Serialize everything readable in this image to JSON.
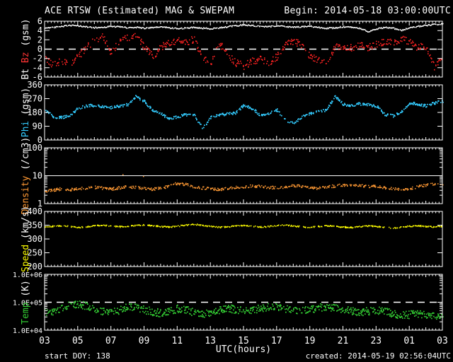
{
  "header": {
    "title": "ACE RTSW (Estimated) MAG & SWEPAM",
    "begin": "Begin: 2014-05-18 03:00:00UTC"
  },
  "footer": {
    "start_doy": "start DOY: 138",
    "created": "created: 2014-05-19 02:56:04UTC"
  },
  "colors": {
    "background": "#000000",
    "frame": "#ffffff",
    "bt": "#ffffff",
    "bz": "#ff2222",
    "phi": "#33ccff",
    "density": "#ff9933",
    "speed": "#ffff00",
    "temp": "#33cc33"
  },
  "chart_data": {
    "type": "scatter",
    "title": "ACE RTSW (Estimated) MAG & SWEPAM",
    "xlabel": "UTC(hours)",
    "x_range": [
      3,
      27
    ],
    "x_tick_labels": [
      "03",
      "05",
      "07",
      "09",
      "11",
      "13",
      "15",
      "17",
      "19",
      "21",
      "23",
      "01",
      "03"
    ],
    "x_hours": [
      3,
      3.5,
      4,
      4.5,
      5,
      5.5,
      6,
      6.5,
      7,
      7.5,
      8,
      8.5,
      9,
      9.5,
      10,
      10.5,
      11,
      11.5,
      12,
      12.5,
      13,
      13.5,
      14,
      14.5,
      15,
      15.5,
      16,
      16.5,
      17,
      17.5,
      18,
      18.5,
      19,
      19.5,
      20,
      20.5,
      21,
      21.5,
      22,
      22.5,
      23,
      23.5,
      24,
      24.5,
      25,
      25.5,
      26,
      26.5,
      27
    ],
    "panels": [
      {
        "id": "bt-bz",
        "label_parts": [
          {
            "text": "Bt ",
            "color": "#ffffff"
          },
          {
            "text": "Bz",
            "color": "#ff3333"
          },
          {
            "text": " (gsm)",
            "color": "#ffffff"
          }
        ],
        "scale": "linear",
        "ylim": [
          -6,
          6
        ],
        "yticks": [
          {
            "v": 6,
            "label": "6"
          },
          {
            "v": 4,
            "label": "4"
          },
          {
            "v": 2,
            "label": "2"
          },
          {
            "v": 0,
            "label": "0"
          },
          {
            "v": -2,
            "label": "-2"
          },
          {
            "v": -4,
            "label": "-4"
          },
          {
            "v": -6,
            "label": "-6"
          }
        ],
        "dashed_line": 0,
        "series": [
          {
            "name": "Bt",
            "color": "#ffffff",
            "values": [
              4.6,
              4.8,
              5.0,
              5.2,
              5.1,
              4.9,
              4.7,
              4.8,
              5.0,
              4.9,
              4.7,
              4.8,
              4.6,
              4.7,
              4.9,
              4.7,
              4.5,
              4.6,
              4.8,
              4.6,
              4.5,
              4.7,
              4.9,
              5.1,
              5.3,
              5.2,
              5.0,
              4.9,
              5.1,
              5.0,
              4.8,
              4.9,
              5.0,
              4.8,
              4.6,
              4.7,
              4.9,
              4.8,
              4.5,
              3.9,
              4.4,
              4.8,
              4.6,
              4.1,
              4.7,
              5.0,
              5.2,
              5.4,
              5.5
            ]
          },
          {
            "name": "Bz",
            "color": "#ff2222",
            "values": [
              -2.0,
              -3.3,
              -2.5,
              -3.0,
              -1.5,
              0.5,
              2.0,
              2.8,
              -1.0,
              2.0,
              2.5,
              3.3,
              0.5,
              -1.5,
              0.5,
              1.5,
              2.0,
              1.5,
              2.3,
              -2.0,
              -2.8,
              1.5,
              -1.0,
              -2.8,
              -3.5,
              -2.5,
              -2.0,
              -2.8,
              -1.5,
              1.0,
              1.8,
              1.0,
              -1.5,
              -2.3,
              -2.5,
              0.5,
              0.8,
              0.3,
              1.0,
              0.5,
              1.2,
              1.8,
              1.5,
              2.3,
              1.5,
              0.5,
              0.8,
              -3.8,
              -1.5
            ]
          }
        ]
      },
      {
        "id": "phi",
        "label_parts": [
          {
            "text": "Phi",
            "color": "#33ccff"
          },
          {
            "text": " (gsm)",
            "color": "#ffffff"
          }
        ],
        "scale": "linear",
        "ylim": [
          0,
          360
        ],
        "yticks": [
          {
            "v": 360,
            "label": "360"
          },
          {
            "v": 270,
            "label": "270"
          },
          {
            "v": 180,
            "label": "180"
          },
          {
            "v": 90,
            "label": "90"
          },
          {
            "v": 0,
            "label": "0"
          }
        ],
        "series": [
          {
            "name": "Phi",
            "color": "#33ccff",
            "values": [
              200,
              155,
              150,
              160,
              210,
              225,
              230,
              220,
              215,
              225,
              235,
              290,
              255,
              195,
              175,
              140,
              155,
              170,
              165,
              80,
              150,
              165,
              175,
              180,
              230,
              210,
              160,
              175,
              200,
              130,
              110,
              155,
              175,
              190,
              200,
              290,
              235,
              230,
              240,
              235,
              225,
              170,
              160,
              185,
              245,
              240,
              225,
              245,
              255
            ]
          }
        ]
      },
      {
        "id": "density",
        "label_parts": [
          {
            "text": "Density",
            "color": "#ff9933"
          },
          {
            "text": " (/cm3)",
            "color": "#ffffff"
          }
        ],
        "scale": "log",
        "ylim": [
          1,
          100
        ],
        "yticks": [
          {
            "v": 100,
            "label": "100"
          },
          {
            "v": 10,
            "label": "10"
          },
          {
            "v": 1,
            "label": "1"
          }
        ],
        "solid_line": 10,
        "series": [
          {
            "name": "Density",
            "color": "#ff9933",
            "values": [
              3.0,
              3.2,
              3.5,
              3.3,
              3.6,
              3.8,
              4.0,
              3.7,
              3.5,
              3.8,
              4.2,
              4.0,
              3.6,
              3.4,
              3.7,
              4.5,
              5.5,
              5.0,
              4.2,
              3.8,
              3.5,
              3.3,
              3.6,
              4.0,
              4.2,
              4.5,
              4.3,
              4.0,
              3.8,
              4.2,
              4.6,
              4.4,
              4.0,
              3.7,
              4.0,
              4.5,
              4.8,
              5.0,
              4.7,
              4.4,
              4.2,
              3.8,
              3.5,
              3.2,
              3.6,
              4.2,
              4.8,
              5.2,
              5.0
            ]
          }
        ]
      },
      {
        "id": "speed",
        "label_parts": [
          {
            "text": "Speed",
            "color": "#ffff00"
          },
          {
            "text": " (km/s)",
            "color": "#ffffff"
          }
        ],
        "scale": "linear",
        "ylim": [
          200,
          400
        ],
        "yticks": [
          {
            "v": 400,
            "label": "400"
          },
          {
            "v": 350,
            "label": "350"
          },
          {
            "v": 300,
            "label": "300"
          },
          {
            "v": 250,
            "label": "250"
          },
          {
            "v": 200,
            "label": "200"
          }
        ],
        "series": [
          {
            "name": "Speed",
            "color": "#ffff00",
            "values": [
              345,
              348,
              350,
              347,
              344,
              346,
              350,
              352,
              349,
              346,
              348,
              351,
              353,
              350,
              347,
              345,
              348,
              352,
              355,
              351,
              347,
              344,
              346,
              349,
              351,
              348,
              345,
              347,
              350,
              352,
              349,
              346,
              344,
              347,
              350,
              348,
              345,
              343,
              346,
              349,
              347,
              344,
              342,
              345,
              348,
              350,
              347,
              345,
              348
            ]
          }
        ]
      },
      {
        "id": "temp",
        "label_parts": [
          {
            "text": "Temp",
            "color": "#33cc33"
          },
          {
            "text": " (K)",
            "color": "#ffffff"
          }
        ],
        "scale": "log",
        "ylim": [
          10000,
          1000000
        ],
        "yticks": [
          {
            "v": 1000000,
            "label": "1.0E+06"
          },
          {
            "v": 100000,
            "label": "1.0E+05"
          },
          {
            "v": 10000,
            "label": "1.0E+04"
          }
        ],
        "dashed_line": 100000,
        "series": [
          {
            "name": "Temp",
            "color": "#33cc33",
            "values": [
              45000,
              50000,
              65000,
              80000,
              90000,
              75000,
              60000,
              50000,
              45000,
              55000,
              70000,
              65000,
              55000,
              48000,
              42000,
              50000,
              60000,
              55000,
              45000,
              38000,
              42000,
              52000,
              62000,
              58000,
              50000,
              55000,
              65000,
              70000,
              68000,
              60000,
              55000,
              50000,
              58000,
              66000,
              72000,
              68000,
              60000,
              52000,
              46000,
              50000,
              56000,
              48000,
              40000,
              35000,
              38000,
              42000,
              36000,
              32000,
              40000
            ]
          }
        ]
      }
    ]
  }
}
